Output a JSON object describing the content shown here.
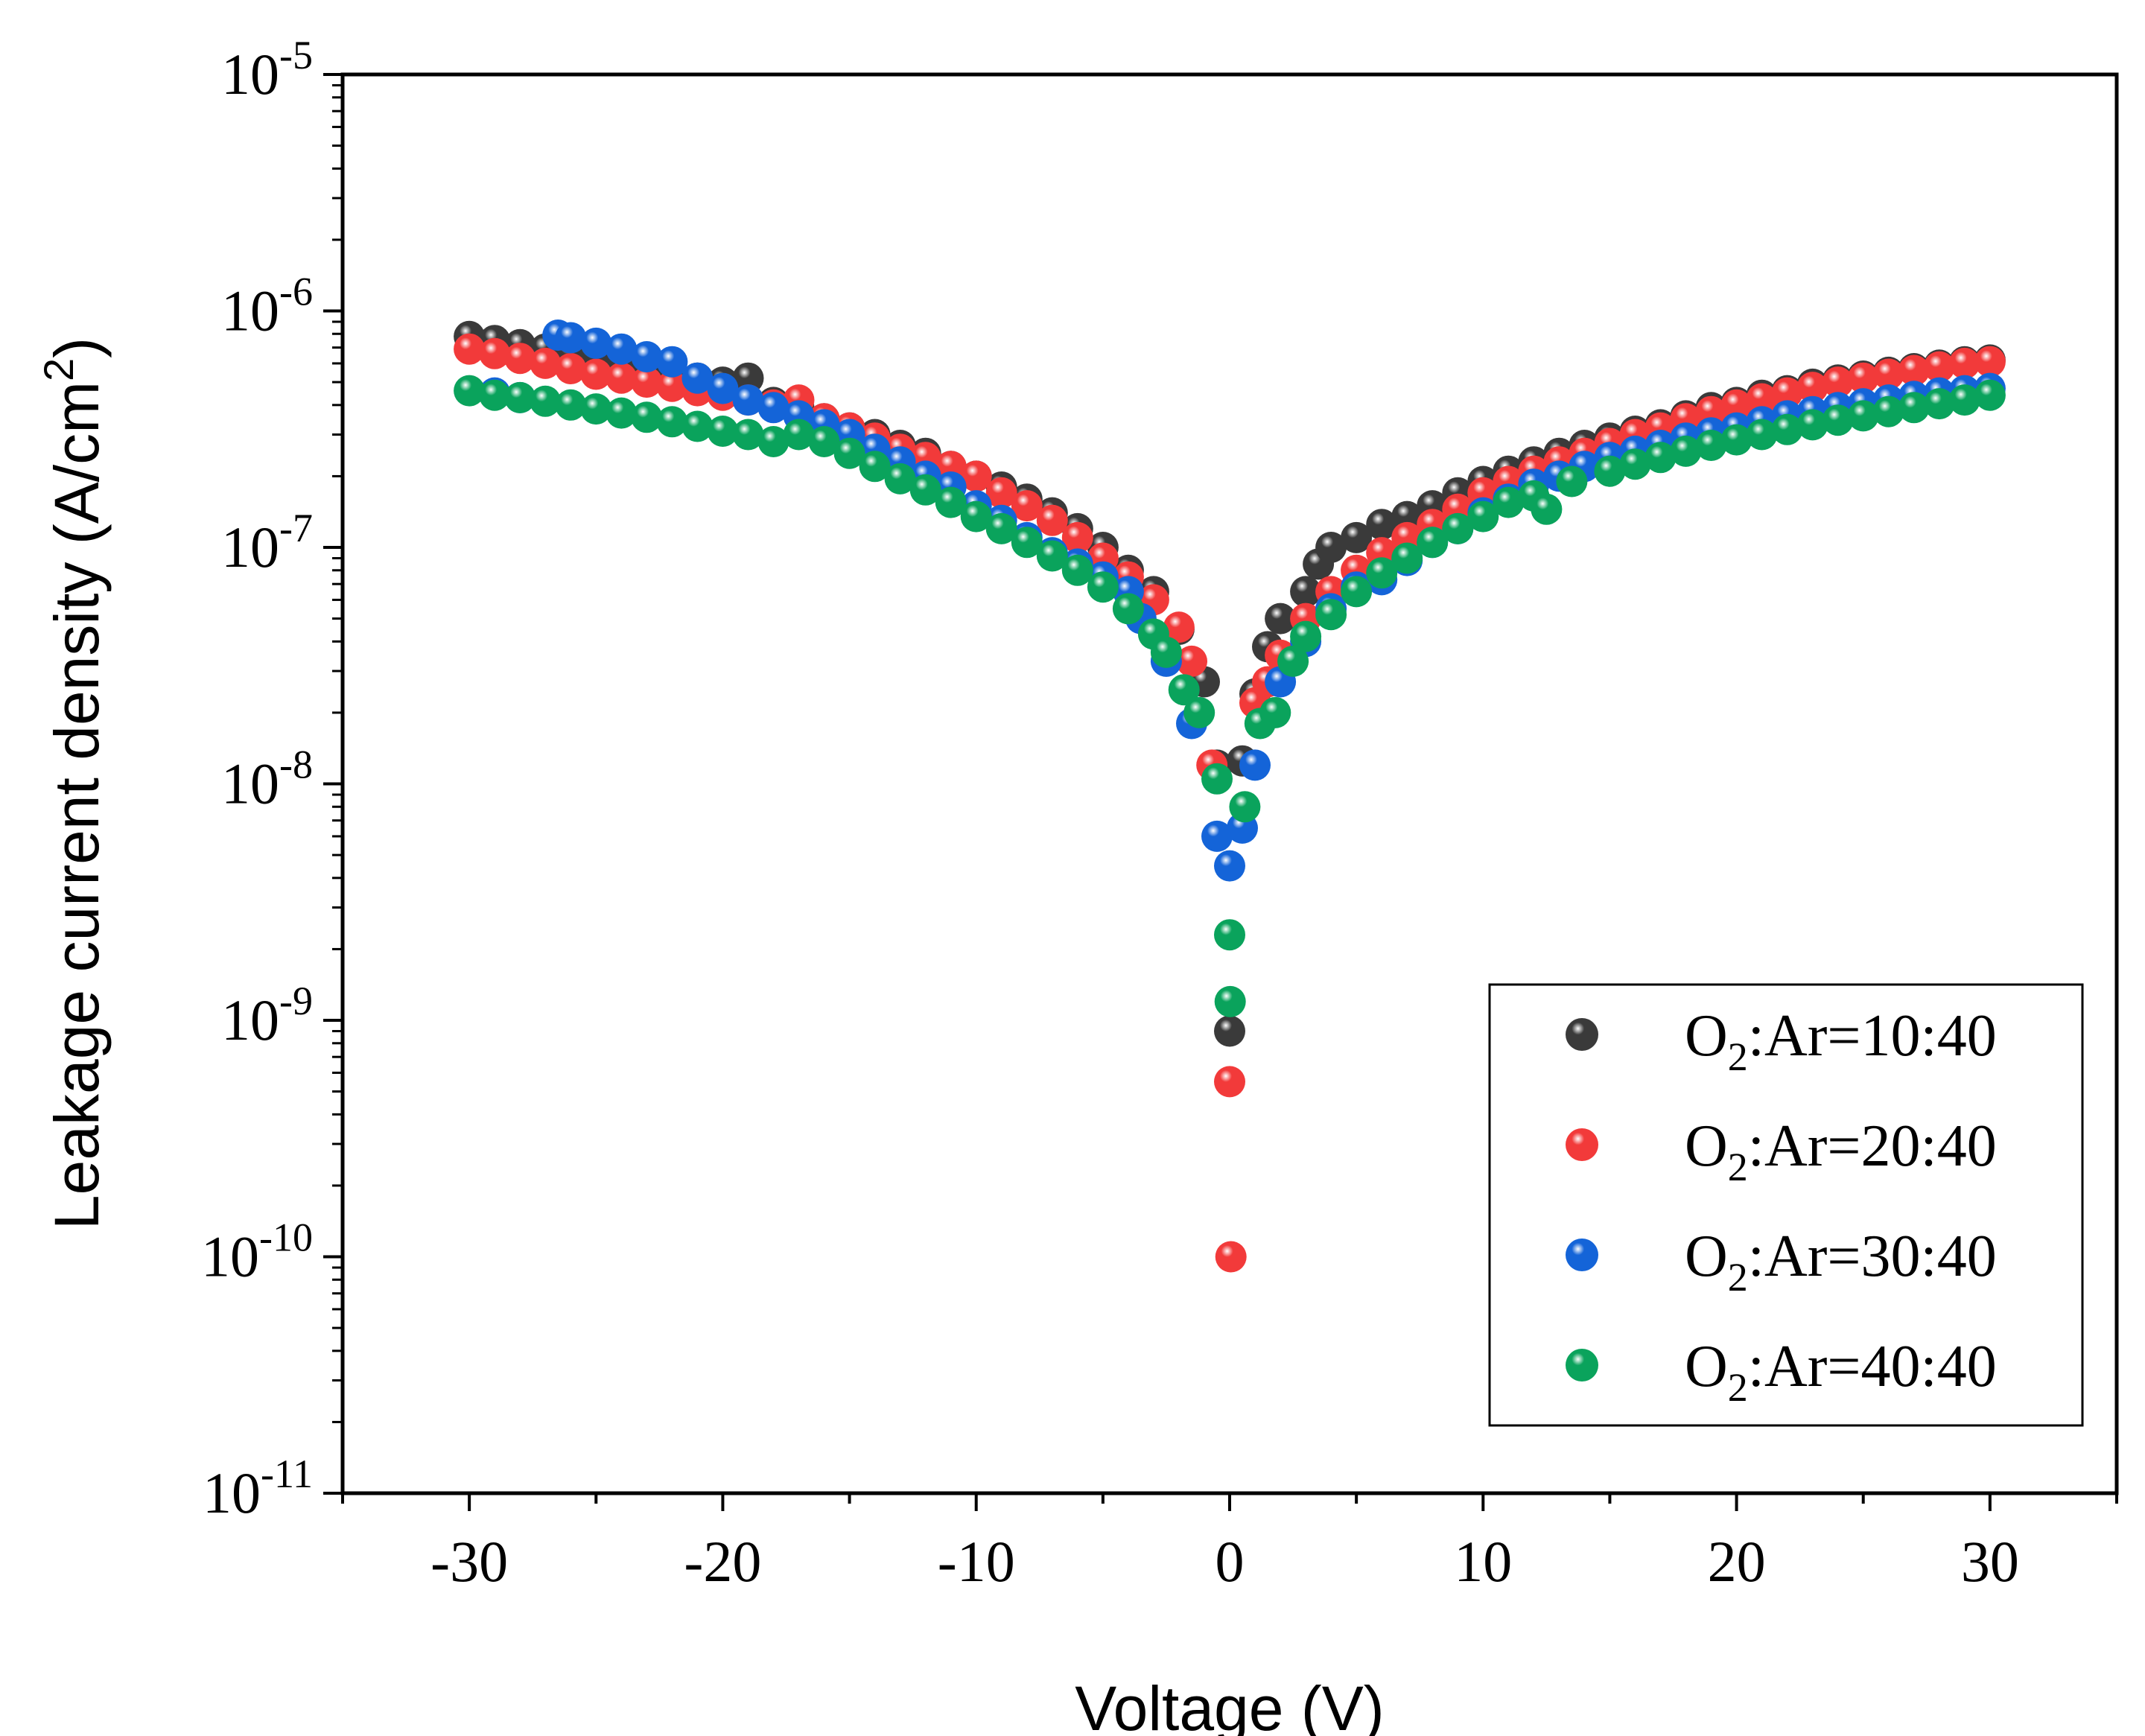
{
  "chart_data": {
    "type": "scatter",
    "xlabel": "Voltage (V)",
    "ylabel_main": "Leakage current density (A/cm",
    "ylabel_sup": "2",
    "ylabel_close": ")",
    "xlim": [
      -35,
      35
    ],
    "ylim": [
      1e-11,
      1e-05
    ],
    "yscale": "log",
    "xticks": [
      -30,
      -20,
      -10,
      0,
      10,
      20,
      30
    ],
    "xtick_labels": [
      "-30",
      "-20",
      "-10",
      "0",
      "10",
      "20",
      "30"
    ],
    "ytick_exponents": [
      "-5",
      "-6",
      "-7",
      "-8",
      "-9",
      "-10",
      "-11"
    ],
    "ytick_base": "10",
    "legend_position": "bottom-right",
    "series": [
      {
        "name_prefix": "O",
        "name_sub": "2",
        "name_suffix": ":Ar=10:40",
        "color": "#3a3a3a",
        "points": [
          [
            -30,
            7.8e-07
          ],
          [
            -29,
            7.5e-07
          ],
          [
            -28,
            7.2e-07
          ],
          [
            -27,
            6.9e-07
          ],
          [
            -26,
            6.6e-07
          ],
          [
            -25,
            6.3e-07
          ],
          [
            -24,
            6e-07
          ],
          [
            -23,
            5.8e-07
          ],
          [
            -22,
            5.5e-07
          ],
          [
            -21,
            5.2e-07
          ],
          [
            -20,
            5e-07
          ],
          [
            -19,
            5.2e-07
          ],
          [
            -18,
            4.1e-07
          ],
          [
            -17,
            3.9e-07
          ],
          [
            -16,
            3.5e-07
          ],
          [
            -15,
            3.2e-07
          ],
          [
            -14,
            3e-07
          ],
          [
            -13,
            2.7e-07
          ],
          [
            -12,
            2.5e-07
          ],
          [
            -11,
            2.2e-07
          ],
          [
            -10,
            2e-07
          ],
          [
            -9,
            1.8e-07
          ],
          [
            -8,
            1.6e-07
          ],
          [
            -7,
            1.4e-07
          ],
          [
            -6,
            1.2e-07
          ],
          [
            -5,
            1e-07
          ],
          [
            -4,
            8e-08
          ],
          [
            -3,
            6.5e-08
          ],
          [
            -2,
            4.5e-08
          ],
          [
            -1,
            2.7e-08
          ],
          [
            -0.5,
            1.2e-08
          ],
          [
            0,
            9e-10
          ],
          [
            0.5,
            1.25e-08
          ],
          [
            1,
            2.4e-08
          ],
          [
            1.5,
            3.8e-08
          ],
          [
            2,
            5e-08
          ],
          [
            3,
            6.5e-08
          ],
          [
            3.5,
            8.5e-08
          ],
          [
            4,
            1e-07
          ],
          [
            5,
            1.1e-07
          ],
          [
            6,
            1.25e-07
          ],
          [
            7,
            1.35e-07
          ],
          [
            8,
            1.5e-07
          ],
          [
            9,
            1.7e-07
          ],
          [
            10,
            1.9e-07
          ],
          [
            11,
            2.1e-07
          ],
          [
            12,
            2.3e-07
          ],
          [
            13,
            2.5e-07
          ],
          [
            14,
            2.7e-07
          ],
          [
            15,
            2.9e-07
          ],
          [
            16,
            3.1e-07
          ],
          [
            17,
            3.3e-07
          ],
          [
            18,
            3.6e-07
          ],
          [
            19,
            3.9e-07
          ],
          [
            20,
            4.1e-07
          ],
          [
            21,
            4.4e-07
          ],
          [
            22,
            4.6e-07
          ],
          [
            23,
            4.9e-07
          ],
          [
            24,
            5.1e-07
          ],
          [
            25,
            5.3e-07
          ],
          [
            26,
            5.5e-07
          ],
          [
            27,
            5.7e-07
          ],
          [
            28,
            5.9e-07
          ],
          [
            29,
            6.1e-07
          ],
          [
            30,
            6.2e-07
          ]
        ]
      },
      {
        "name_prefix": "O",
        "name_sub": "2",
        "name_suffix": ":Ar=20:40",
        "color": "#f23a3a",
        "points": [
          [
            -30,
            6.9e-07
          ],
          [
            -29,
            6.6e-07
          ],
          [
            -28,
            6.3e-07
          ],
          [
            -27,
            6e-07
          ],
          [
            -26,
            5.7e-07
          ],
          [
            -25,
            5.4e-07
          ],
          [
            -24,
            5.2e-07
          ],
          [
            -23,
            5e-07
          ],
          [
            -22,
            4.8e-07
          ],
          [
            -21,
            4.6e-07
          ],
          [
            -20,
            4.4e-07
          ],
          [
            -19,
            4.2e-07
          ],
          [
            -18,
            4e-07
          ],
          [
            -17,
            4.2e-07
          ],
          [
            -16,
            3.5e-07
          ],
          [
            -15,
            3.2e-07
          ],
          [
            -14,
            2.9e-07
          ],
          [
            -13,
            2.6e-07
          ],
          [
            -12,
            2.4e-07
          ],
          [
            -11,
            2.2e-07
          ],
          [
            -10,
            2e-07
          ],
          [
            -9,
            1.7e-07
          ],
          [
            -8,
            1.5e-07
          ],
          [
            -7,
            1.3e-07
          ],
          [
            -6,
            1.1e-07
          ],
          [
            -5,
            9e-08
          ],
          [
            -4,
            7.5e-08
          ],
          [
            -3,
            6e-08
          ],
          [
            -2,
            4.6e-08
          ],
          [
            -1.5,
            3.3e-08
          ],
          [
            -0.7,
            1.2e-08
          ],
          [
            0,
            5.5e-10
          ],
          [
            0.05,
            1e-10
          ],
          [
            1,
            2.2e-08
          ],
          [
            1.5,
            2.7e-08
          ],
          [
            2,
            3.5e-08
          ],
          [
            3,
            5e-08
          ],
          [
            4,
            6.5e-08
          ],
          [
            5,
            8e-08
          ],
          [
            6,
            9.5e-08
          ],
          [
            7,
            1.1e-07
          ],
          [
            8,
            1.25e-07
          ],
          [
            9,
            1.45e-07
          ],
          [
            10,
            1.7e-07
          ],
          [
            11,
            1.9e-07
          ],
          [
            12,
            2.1e-07
          ],
          [
            13,
            2.3e-07
          ],
          [
            14,
            2.5e-07
          ],
          [
            15,
            2.75e-07
          ],
          [
            16,
            3e-07
          ],
          [
            17,
            3.2e-07
          ],
          [
            18,
            3.5e-07
          ],
          [
            19,
            3.75e-07
          ],
          [
            20,
            4e-07
          ],
          [
            21,
            4.25e-07
          ],
          [
            22,
            4.5e-07
          ],
          [
            23,
            4.75e-07
          ],
          [
            24,
            5e-07
          ],
          [
            25,
            5.2e-07
          ],
          [
            26,
            5.4e-07
          ],
          [
            27,
            5.6e-07
          ],
          [
            28,
            5.8e-07
          ],
          [
            29,
            6e-07
          ],
          [
            30,
            6.1e-07
          ]
        ]
      },
      {
        "name_prefix": "O",
        "name_sub": "2",
        "name_suffix": ":Ar=30:40",
        "color": "#1464d8",
        "points": [
          [
            -29,
            4.5e-07
          ],
          [
            -28,
            4.3e-07
          ],
          [
            -26.5,
            7.9e-07
          ],
          [
            -26,
            7.7e-07
          ],
          [
            -25,
            7.3e-07
          ],
          [
            -24,
            6.9e-07
          ],
          [
            -23,
            6.4e-07
          ],
          [
            -22,
            6.1e-07
          ],
          [
            -21,
            5.2e-07
          ],
          [
            -20,
            4.7e-07
          ],
          [
            -19,
            4.2e-07
          ],
          [
            -18,
            3.9e-07
          ],
          [
            -17,
            3.6e-07
          ],
          [
            -16,
            3.3e-07
          ],
          [
            -15,
            3e-07
          ],
          [
            -14,
            2.6e-07
          ],
          [
            -13,
            2.3e-07
          ],
          [
            -12,
            2e-07
          ],
          [
            -11,
            1.8e-07
          ],
          [
            -10,
            1.5e-07
          ],
          [
            -9,
            1.3e-07
          ],
          [
            -8,
            1.1e-07
          ],
          [
            -7,
            9.5e-08
          ],
          [
            -6,
            8.5e-08
          ],
          [
            -5,
            7.5e-08
          ],
          [
            -4,
            6.5e-08
          ],
          [
            -3.5,
            5e-08
          ],
          [
            -2.5,
            3.3e-08
          ],
          [
            -1.5,
            1.8e-08
          ],
          [
            -0.5,
            6e-09
          ],
          [
            0,
            4.5e-09
          ],
          [
            0.5,
            6.5e-09
          ],
          [
            1,
            1.2e-08
          ],
          [
            2,
            2.7e-08
          ],
          [
            3,
            4e-08
          ],
          [
            4,
            5.5e-08
          ],
          [
            5,
            6.8e-08
          ],
          [
            6,
            7.3e-08
          ],
          [
            7,
            8.8e-08
          ],
          [
            8,
            1.05e-07
          ],
          [
            9,
            1.2e-07
          ],
          [
            10,
            1.4e-07
          ],
          [
            11,
            1.6e-07
          ],
          [
            12,
            1.85e-07
          ],
          [
            13,
            2e-07
          ],
          [
            14,
            2.2e-07
          ],
          [
            15,
            2.4e-07
          ],
          [
            16,
            2.55e-07
          ],
          [
            17,
            2.7e-07
          ],
          [
            18,
            2.9e-07
          ],
          [
            19,
            3.05e-07
          ],
          [
            20,
            3.2e-07
          ],
          [
            21,
            3.4e-07
          ],
          [
            22,
            3.6e-07
          ],
          [
            23,
            3.75e-07
          ],
          [
            24,
            3.9e-07
          ],
          [
            25,
            4.05e-07
          ],
          [
            26,
            4.2e-07
          ],
          [
            27,
            4.35e-07
          ],
          [
            28,
            4.5e-07
          ],
          [
            29,
            4.6e-07
          ],
          [
            30,
            4.7e-07
          ]
        ]
      },
      {
        "name_prefix": "O",
        "name_sub": "2",
        "name_suffix": ":Ar=40:40",
        "color": "#0aa35c",
        "points": [
          [
            -30,
            4.6e-07
          ],
          [
            -29,
            4.4e-07
          ],
          [
            -28,
            4.3e-07
          ],
          [
            -27,
            4.15e-07
          ],
          [
            -26,
            4e-07
          ],
          [
            -25,
            3.85e-07
          ],
          [
            -24,
            3.7e-07
          ],
          [
            -23,
            3.55e-07
          ],
          [
            -22,
            3.4e-07
          ],
          [
            -21,
            3.25e-07
          ],
          [
            -20,
            3.1e-07
          ],
          [
            -19,
            3e-07
          ],
          [
            -18,
            2.8e-07
          ],
          [
            -17,
            3e-07
          ],
          [
            -16,
            2.8e-07
          ],
          [
            -15,
            2.5e-07
          ],
          [
            -14,
            2.2e-07
          ],
          [
            -13,
            1.95e-07
          ],
          [
            -12,
            1.75e-07
          ],
          [
            -11,
            1.55e-07
          ],
          [
            -10,
            1.35e-07
          ],
          [
            -9,
            1.2e-07
          ],
          [
            -8,
            1.05e-07
          ],
          [
            -7,
            9.2e-08
          ],
          [
            -6,
            8e-08
          ],
          [
            -5,
            6.8e-08
          ],
          [
            -4,
            5.5e-08
          ],
          [
            -3,
            4.3e-08
          ],
          [
            -2.5,
            3.6e-08
          ],
          [
            -1.8,
            2.5e-08
          ],
          [
            -1.2,
            2e-08
          ],
          [
            -0.5,
            1.05e-08
          ],
          [
            0,
            2.3e-09
          ],
          [
            0.02,
            1.2e-09
          ],
          [
            0.6,
            8e-09
          ],
          [
            1.2,
            1.8e-08
          ],
          [
            1.8,
            2e-08
          ],
          [
            2.5,
            3.3e-08
          ],
          [
            3,
            4.2e-08
          ],
          [
            4,
            5.2e-08
          ],
          [
            5,
            6.5e-08
          ],
          [
            6,
            7.8e-08
          ],
          [
            7,
            9e-08
          ],
          [
            8,
            1.05e-07
          ],
          [
            9,
            1.2e-07
          ],
          [
            10,
            1.35e-07
          ],
          [
            11,
            1.55e-07
          ],
          [
            12,
            1.65e-07
          ],
          [
            12.5,
            1.45e-07
          ],
          [
            13.5,
            1.9e-07
          ],
          [
            15,
            2.1e-07
          ],
          [
            16,
            2.25e-07
          ],
          [
            17,
            2.4e-07
          ],
          [
            18,
            2.55e-07
          ],
          [
            19,
            2.7e-07
          ],
          [
            20,
            2.85e-07
          ],
          [
            21,
            3e-07
          ],
          [
            22,
            3.15e-07
          ],
          [
            23,
            3.3e-07
          ],
          [
            24,
            3.45e-07
          ],
          [
            25,
            3.6e-07
          ],
          [
            26,
            3.75e-07
          ],
          [
            27,
            3.9e-07
          ],
          [
            28,
            4.05e-07
          ],
          [
            29,
            4.2e-07
          ],
          [
            30,
            4.4e-07
          ]
        ]
      }
    ]
  }
}
